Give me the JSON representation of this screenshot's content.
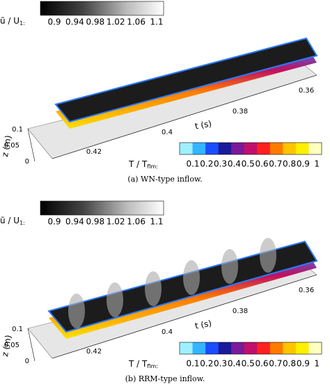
{
  "panels": [
    {
      "velocity_bar": {
        "label": "ũ / U",
        "label_sub": "1:",
        "ticks": [
          "0.9",
          "0.94",
          "0.98",
          "1.02",
          "1.06",
          "1.1"
        ]
      },
      "temperature_bar": {
        "label": "T / T",
        "label_sub": "flm:",
        "ticks": [
          "0.1",
          "0.2",
          "0.3",
          "0.4",
          "0.5",
          "0.6",
          "0.7",
          "0.8",
          "0.9",
          "1"
        ]
      },
      "t_axis": {
        "label": "t (s)",
        "ticks": [
          "0.36",
          "0.38",
          "0.4",
          "0.42"
        ]
      },
      "z_axis": {
        "label": "z (m)",
        "ticks": [
          "0.1",
          "0.05",
          "0"
        ]
      },
      "caption": "(a)  WN-type inflow."
    },
    {
      "velocity_bar": {
        "label": "ũ / U",
        "label_sub": "1:",
        "ticks": [
          "0.9",
          "0.94",
          "0.98",
          "1.02",
          "1.06",
          "1.1"
        ]
      },
      "temperature_bar": {
        "label": "T / T",
        "label_sub": "flm:",
        "ticks": [
          "0.1",
          "0.2",
          "0.3",
          "0.4",
          "0.5",
          "0.6",
          "0.7",
          "0.8",
          "0.9",
          "1"
        ]
      },
      "t_axis": {
        "label": "t (s)",
        "ticks": [
          "0.36",
          "0.38",
          "0.4",
          "0.42"
        ]
      },
      "z_axis": {
        "label": "z (m)",
        "ticks": [
          "0.1",
          "0.05",
          "0"
        ]
      },
      "caption": "(b)  RRM-type inflow."
    }
  ]
}
